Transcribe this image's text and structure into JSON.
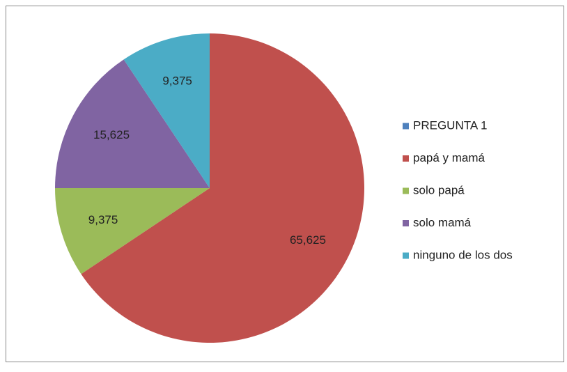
{
  "chart_data": {
    "type": "pie",
    "categories": [
      "PREGUNTA 1",
      "papá y mamá",
      "solo papá",
      "solo mamá",
      "ninguno de los dos"
    ],
    "values": [
      0,
      65.625,
      9.375,
      15.625,
      9.375
    ],
    "value_labels": [
      null,
      "65,625",
      "9,375",
      "15,625",
      "9,375"
    ],
    "colors": [
      "#4f81bd",
      "#c0504d",
      "#9bbb59",
      "#8064a2",
      "#4bacc6"
    ],
    "legend": "right"
  }
}
